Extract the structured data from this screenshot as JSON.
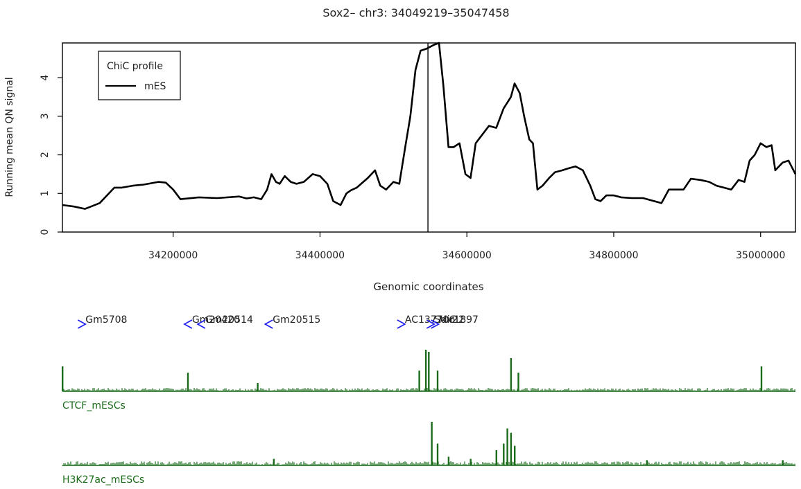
{
  "colors": {
    "profile": "#000000",
    "gene": "#1a1aee",
    "track": "#1a6b1a",
    "frame": "#000000"
  },
  "chart_data": {
    "type": "line",
    "title": "Sox2– chr3: 34049219–35047458",
    "xlabel": "Genomic coordinates",
    "ylabel": "Running mean QN signal",
    "xlim": [
      34049219,
      35047458
    ],
    "ylim": [
      0,
      4.9
    ],
    "x_ticks": [
      34200000,
      34400000,
      34600000,
      34800000,
      35000000
    ],
    "x_tick_labels": [
      "34200000",
      "34400000",
      "34600000",
      "34800000",
      "35000000"
    ],
    "y_ticks": [
      0,
      1,
      2,
      3,
      4
    ],
    "y_tick_labels": [
      "0",
      "1",
      "2",
      "3",
      "4"
    ],
    "vertical_marker_x": 34547000,
    "legend": {
      "title": "ChiC profile",
      "entries": [
        "mES"
      ],
      "position": "top-left"
    },
    "series": [
      {
        "name": "mES",
        "x": [
          34049219,
          34065000,
          34080000,
          34100000,
          34120000,
          34130000,
          34145000,
          34160000,
          34180000,
          34190000,
          34200000,
          34210000,
          34235000,
          34260000,
          34290000,
          34300000,
          34310000,
          34320000,
          34328000,
          34334000,
          34340000,
          34345000,
          34352000,
          34360000,
          34368000,
          34378000,
          34390000,
          34400000,
          34410000,
          34418000,
          34428000,
          34436000,
          34442000,
          34450000,
          34465000,
          34475000,
          34482000,
          34490000,
          34500000,
          34508000,
          34516000,
          34523000,
          34530000,
          34537000,
          34545000,
          34555000,
          34562000,
          34568000,
          34575000,
          34582000,
          34590000,
          34598000,
          34605000,
          34612000,
          34620000,
          34630000,
          34640000,
          34650000,
          34660000,
          34665000,
          34672000,
          34678000,
          34685000,
          34690000,
          34696000,
          34703000,
          34712000,
          34720000,
          34730000,
          34738000,
          34748000,
          34758000,
          34768000,
          34775000,
          34782000,
          34790000,
          34800000,
          34810000,
          34825000,
          34840000,
          34855000,
          34865000,
          34875000,
          34885000,
          34895000,
          34905000,
          34918000,
          34930000,
          34940000,
          34950000,
          34960000,
          34970000,
          34978000,
          34985000,
          34992000,
          35000000,
          35008000,
          35015000,
          35020000,
          35030000,
          35038000,
          35047458
        ],
        "values": [
          0.7,
          0.66,
          0.6,
          0.75,
          1.15,
          1.15,
          1.2,
          1.23,
          1.3,
          1.28,
          1.1,
          0.85,
          0.9,
          0.88,
          0.92,
          0.87,
          0.9,
          0.85,
          1.1,
          1.5,
          1.3,
          1.25,
          1.45,
          1.3,
          1.25,
          1.3,
          1.5,
          1.45,
          1.25,
          0.8,
          0.7,
          1.0,
          1.08,
          1.15,
          1.4,
          1.6,
          1.2,
          1.1,
          1.3,
          1.25,
          2.2,
          3.0,
          4.2,
          4.7,
          4.75,
          4.85,
          4.9,
          3.8,
          2.2,
          2.2,
          2.3,
          1.5,
          1.4,
          2.3,
          2.5,
          2.75,
          2.7,
          3.2,
          3.5,
          3.85,
          3.6,
          3.0,
          2.4,
          2.3,
          1.1,
          1.2,
          1.4,
          1.55,
          1.6,
          1.65,
          1.7,
          1.6,
          1.2,
          0.85,
          0.8,
          0.95,
          0.95,
          0.9,
          0.88,
          0.88,
          0.8,
          0.75,
          1.1,
          1.1,
          1.1,
          1.38,
          1.35,
          1.3,
          1.2,
          1.15,
          1.1,
          1.35,
          1.3,
          1.85,
          2.0,
          2.3,
          2.2,
          2.25,
          1.6,
          1.8,
          1.85,
          1.5
        ]
      }
    ],
    "genes": [
      {
        "name": "Gm5708",
        "x": 34075000,
        "strand": "+"
      },
      {
        "name": "Gm20420",
        "x": 34220000,
        "strand": "-"
      },
      {
        "name": "Gm20514",
        "x": 34238000,
        "strand": "-"
      },
      {
        "name": "Gm20515",
        "x": 34330000,
        "strand": "-"
      },
      {
        "name": "AC137706.2",
        "x": 34510000,
        "strand": "+"
      },
      {
        "name": "Sox2",
        "x": 34550000,
        "strand": "+"
      },
      {
        "name": "Mir1897",
        "x": 34556000,
        "strand": "+"
      }
    ],
    "tracks": [
      {
        "name": "CTCF_mESCs",
        "peaks": [
          [
            34049219,
            0.6
          ],
          [
            34220000,
            0.45
          ],
          [
            34315000,
            0.2
          ],
          [
            34535000,
            0.5
          ],
          [
            34544000,
            1.0
          ],
          [
            34548000,
            0.95
          ],
          [
            34560000,
            0.5
          ],
          [
            34660000,
            0.8
          ],
          [
            34670000,
            0.45
          ],
          [
            35001000,
            0.6
          ]
        ]
      },
      {
        "name": "H3K27ac_mESCs",
        "peaks": [
          [
            34337000,
            0.15
          ],
          [
            34552000,
            1.0
          ],
          [
            34560000,
            0.5
          ],
          [
            34575000,
            0.2
          ],
          [
            34605000,
            0.15
          ],
          [
            34640000,
            0.35
          ],
          [
            34650000,
            0.5
          ],
          [
            34655000,
            0.85
          ],
          [
            34660000,
            0.75
          ],
          [
            34665000,
            0.45
          ],
          [
            34845000,
            0.12
          ],
          [
            35030000,
            0.12
          ]
        ]
      }
    ]
  }
}
